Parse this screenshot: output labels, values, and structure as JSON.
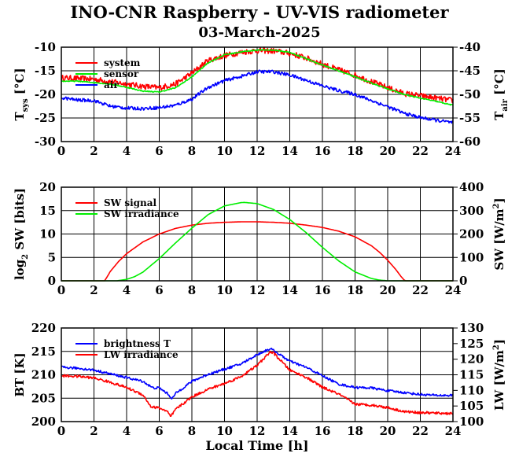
{
  "title": "INO-CNR Raspberry - UV-VIS radiometer",
  "date": "03-March-2025",
  "colors": {
    "red": "#ff0000",
    "green": "#00ee00",
    "blue": "#0000ff",
    "grid": "#000000"
  },
  "chart_data": [
    {
      "type": "line",
      "xlim": [
        0,
        24
      ],
      "xticks": [
        "0",
        "2",
        "4",
        "6",
        "8",
        "10",
        "12",
        "14",
        "16",
        "18",
        "20",
        "22",
        "24"
      ],
      "ylabel_left": "T_sys [°C]",
      "ylabel_right": "T_air [°C]",
      "ylim_left": [
        -30,
        -10
      ],
      "yticks_left": [
        "-30",
        "-25",
        "-20",
        "-15",
        "-10"
      ],
      "ylim_right": [
        -60,
        -40
      ],
      "yticks_right": [
        "-60",
        "-55",
        "-50",
        "-45",
        "-40"
      ],
      "grid": true,
      "legend_position": "top-left",
      "series": [
        {
          "name": "system",
          "color": "#ff0000",
          "axis": "left",
          "noise": 0.6,
          "x": [
            0,
            1,
            2,
            3,
            4,
            5,
            6,
            7,
            8,
            9,
            10,
            11,
            12,
            13,
            14,
            15,
            16,
            17,
            18,
            19,
            20,
            21,
            22,
            23,
            24
          ],
          "values": [
            -16.5,
            -16.6,
            -16.8,
            -17.3,
            -17.8,
            -18.3,
            -18.6,
            -17.8,
            -15.5,
            -12.8,
            -11.8,
            -11.1,
            -10.7,
            -10.8,
            -11.3,
            -12.3,
            -13.6,
            -14.8,
            -15.9,
            -17.3,
            -18.6,
            -19.8,
            -20.3,
            -20.8,
            -21.3
          ]
        },
        {
          "name": "sensor",
          "color": "#00ee00",
          "axis": "left",
          "noise": 0.1,
          "x": [
            0,
            1,
            2,
            3,
            4,
            5,
            6,
            7,
            8,
            9,
            10,
            11,
            12,
            13,
            14,
            15,
            16,
            17,
            18,
            19,
            20,
            21,
            22,
            23,
            24
          ],
          "values": [
            -17.2,
            -17.2,
            -17.5,
            -17.8,
            -18.5,
            -19.3,
            -19.5,
            -18.6,
            -16.3,
            -13.3,
            -11.6,
            -11.0,
            -10.6,
            -10.6,
            -11.1,
            -12.4,
            -13.8,
            -15.0,
            -16.3,
            -17.6,
            -18.8,
            -20.0,
            -20.8,
            -21.5,
            -22.3
          ]
        },
        {
          "name": "air",
          "color": "#0000ff",
          "axis": "right",
          "noise": 0.35,
          "x": [
            0,
            1,
            2,
            3,
            4,
            5,
            6,
            7,
            8,
            9,
            10,
            11,
            12,
            13,
            14,
            15,
            16,
            17,
            18,
            19,
            20,
            21,
            22,
            23,
            24
          ],
          "values": [
            -50.7,
            -51.2,
            -51.3,
            -52.5,
            -52.9,
            -53.0,
            -52.8,
            -52.3,
            -51.0,
            -48.5,
            -47.1,
            -46.2,
            -45.2,
            -45.2,
            -45.9,
            -47.0,
            -48.2,
            -49.2,
            -50.0,
            -51.3,
            -52.6,
            -54.0,
            -54.9,
            -55.5,
            -56.0
          ]
        }
      ]
    },
    {
      "type": "line",
      "xlim": [
        0,
        24
      ],
      "xticks": [
        "0",
        "2",
        "4",
        "6",
        "8",
        "10",
        "12",
        "14",
        "16",
        "18",
        "20",
        "22",
        "24"
      ],
      "ylabel_left": "log2 SW [bits]",
      "ylabel_right": "SW [W/m²]",
      "ylim_left": [
        0,
        20
      ],
      "yticks_left": [
        "0",
        "5",
        "10",
        "15",
        "20"
      ],
      "ylim_right": [
        0,
        400
      ],
      "yticks_right": [
        "0",
        "100",
        "200",
        "300",
        "400"
      ],
      "grid": true,
      "legend_position": "top-left",
      "series": [
        {
          "name": "SW signal",
          "color": "#ff0000",
          "axis": "left",
          "noise": 0,
          "x": [
            0,
            2.65,
            2.8,
            3,
            3.5,
            4,
            5,
            6,
            7,
            8,
            9,
            10,
            11,
            12,
            13,
            14,
            15,
            16,
            17,
            18,
            19,
            19.5,
            20,
            20.5,
            20.8,
            21,
            21.1,
            24
          ],
          "values": [
            0,
            0,
            0.8,
            2.0,
            4.1,
            5.8,
            8.3,
            10.0,
            11.2,
            11.9,
            12.3,
            12.5,
            12.6,
            12.6,
            12.5,
            12.3,
            11.9,
            11.4,
            10.6,
            9.4,
            7.5,
            6.1,
            4.4,
            2.4,
            1.0,
            0.2,
            0,
            0
          ]
        },
        {
          "name": "SW irradiance",
          "color": "#00ee00",
          "axis": "right",
          "noise": 0,
          "x": [
            0,
            3.4,
            4,
            4.5,
            5,
            6,
            7,
            8,
            9,
            10,
            11,
            11.2,
            12,
            13,
            14,
            15,
            16,
            17,
            18,
            19,
            19.5,
            20,
            24
          ],
          "values": [
            0,
            0,
            6,
            18,
            37,
            95,
            162,
            225,
            283,
            320,
            334,
            335,
            330,
            305,
            262,
            206,
            143,
            85,
            38,
            10,
            3,
            0,
            0
          ]
        }
      ]
    },
    {
      "type": "line",
      "xlim": [
        0,
        24
      ],
      "xticks": [
        "0",
        "2",
        "4",
        "6",
        "8",
        "10",
        "12",
        "14",
        "16",
        "18",
        "20",
        "22",
        "24"
      ],
      "xlabel": "Local Time [h]",
      "ylabel_left": "BT [K]",
      "ylabel_right": "LW [W/m²]",
      "ylim_left": [
        200,
        220
      ],
      "yticks_left": [
        "200",
        "205",
        "210",
        "215",
        "220"
      ],
      "ylim_right": [
        100,
        130
      ],
      "yticks_right": [
        "100",
        "105",
        "110",
        "115",
        "120",
        "125",
        "130"
      ],
      "grid": true,
      "legend_position": "top-left",
      "series": [
        {
          "name": "brightness T",
          "color": "#0000ff",
          "axis": "left",
          "noise": 0.25,
          "x": [
            0,
            1,
            2,
            3,
            4,
            5,
            5.6,
            6,
            6.5,
            6.8,
            7,
            8,
            9,
            10,
            11,
            12,
            12.8,
            13,
            14,
            15,
            16,
            17,
            18,
            19,
            20,
            21,
            22,
            23,
            24
          ],
          "values": [
            211.6,
            211.4,
            211.0,
            210.2,
            209.4,
            208.6,
            207.2,
            207.2,
            206.0,
            204.9,
            206.0,
            208.6,
            210.1,
            211.2,
            212.3,
            214.3,
            215.6,
            215.2,
            212.9,
            211.6,
            209.8,
            208.0,
            207.3,
            207.2,
            206.6,
            206.2,
            205.8,
            205.6,
            205.6
          ]
        },
        {
          "name": "LW irradiance",
          "color": "#ff0000",
          "axis": "right",
          "noise": 0.4,
          "x": [
            0,
            1,
            2,
            3,
            4,
            5,
            5.5,
            6,
            6.5,
            6.7,
            7,
            8,
            9,
            10,
            11,
            12,
            12.8,
            13,
            14,
            15,
            16,
            17,
            18,
            19,
            20,
            21,
            22,
            23,
            24
          ],
          "values": [
            114.7,
            114.5,
            114.0,
            112.6,
            110.9,
            108.6,
            104.7,
            104.4,
            103.2,
            101.5,
            103.9,
            107.9,
            110.4,
            112.2,
            114.4,
            118.0,
            122.3,
            122.0,
            116.5,
            114.2,
            111.0,
            108.8,
            105.6,
            105.3,
            104.5,
            103.2,
            102.9,
            102.7,
            102.6
          ]
        }
      ]
    }
  ]
}
